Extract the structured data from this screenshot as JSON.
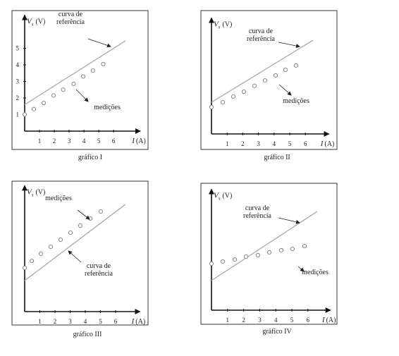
{
  "chart_data": [
    {
      "type": "scatter",
      "caption": "gráfico I",
      "y_label_symbol": "V",
      "y_label_subscript": "s",
      "y_label_unit": "(V)",
      "x_label_symbol": "I",
      "x_label_unit": "(A)",
      "reference_label": [
        "curva de",
        "referência"
      ],
      "measurements_label": "medições",
      "x": [
        0,
        0.62,
        1.29,
        1.95,
        2.6,
        3.3,
        3.95,
        4.6,
        5.3
      ],
      "values": [
        1.0,
        1.33,
        1.7,
        2.15,
        2.5,
        2.85,
        3.3,
        3.65,
        4.05
      ],
      "reference_line": {
        "x": [
          0,
          6.8
        ],
        "values": [
          1.6,
          5.45
        ]
      },
      "xlim": [
        0,
        7.8
      ],
      "ylim": [
        0,
        7
      ],
      "xticks": [
        1,
        2,
        3,
        4,
        5,
        6
      ],
      "yticks": [
        1,
        2,
        3,
        4,
        5
      ]
    },
    {
      "type": "scatter",
      "caption": "gráfico II",
      "y_label_symbol": "V",
      "y_label_subscript": "s",
      "y_label_unit": "(V)",
      "x_label_symbol": "I",
      "x_label_unit": "(A)",
      "reference_label": [
        "curva de",
        "referência"
      ],
      "measurements_label": "medições",
      "x": [
        0,
        0.72,
        1.4,
        2.07,
        2.75,
        3.42,
        4.1,
        4.73,
        5.4
      ],
      "values": [
        1.62,
        1.91,
        2.26,
        2.55,
        2.9,
        3.23,
        3.53,
        3.87,
        4.13
      ],
      "reference_line": {
        "x": [
          0,
          6.5
        ],
        "values": [
          1.91,
          5.66
        ]
      },
      "xlim": [
        0,
        7.5
      ],
      "ylim": [
        0,
        7
      ],
      "xticks": [
        1,
        2,
        3,
        4,
        5,
        6
      ],
      "yticks": []
    },
    {
      "type": "scatter",
      "caption": "gráfico III",
      "y_label_symbol": "V",
      "y_label_subscript": "s",
      "y_label_unit": "(V)",
      "x_label_symbol": "I",
      "x_label_unit": "(A)",
      "reference_label": [
        "curva de",
        "referência"
      ],
      "measurements_label": "medições",
      "x": [
        0,
        0.47,
        1.07,
        1.72,
        2.37,
        3.02,
        3.67,
        4.33,
        5.02
      ],
      "values": [
        2.64,
        3.06,
        3.49,
        3.91,
        4.34,
        4.77,
        5.19,
        5.62,
        6.04
      ],
      "reference_line": {
        "x": [
          0,
          6.65
        ],
        "values": [
          1.87,
          6.47
        ]
      },
      "xlim": [
        0,
        7.6
      ],
      "ylim": [
        0,
        7.6
      ],
      "xticks": [
        1,
        2,
        3,
        4,
        5,
        6
      ],
      "yticks": []
    },
    {
      "type": "scatter",
      "caption": "gráfico IV",
      "y_label_symbol": "V",
      "y_label_subscript": "s",
      "y_label_unit": "(V)",
      "x_label_symbol": "I",
      "x_label_unit": "(A)",
      "reference_label": [
        "curva de",
        "referência"
      ],
      "measurements_label": "medições",
      "x": [
        0,
        0.7,
        1.45,
        2.15,
        2.89,
        3.6,
        4.34,
        5.04,
        5.79
      ],
      "values": [
        2.81,
        2.94,
        3.06,
        3.23,
        3.32,
        3.49,
        3.62,
        3.7,
        3.87
      ],
      "reference_line": {
        "x": [
          0,
          6.58
        ],
        "values": [
          1.79,
          5.96
        ]
      },
      "xlim": [
        0,
        7.4
      ],
      "ylim": [
        0,
        7.3
      ],
      "xticks": [
        1,
        2,
        3,
        4,
        5,
        6
      ],
      "yticks": []
    }
  ]
}
